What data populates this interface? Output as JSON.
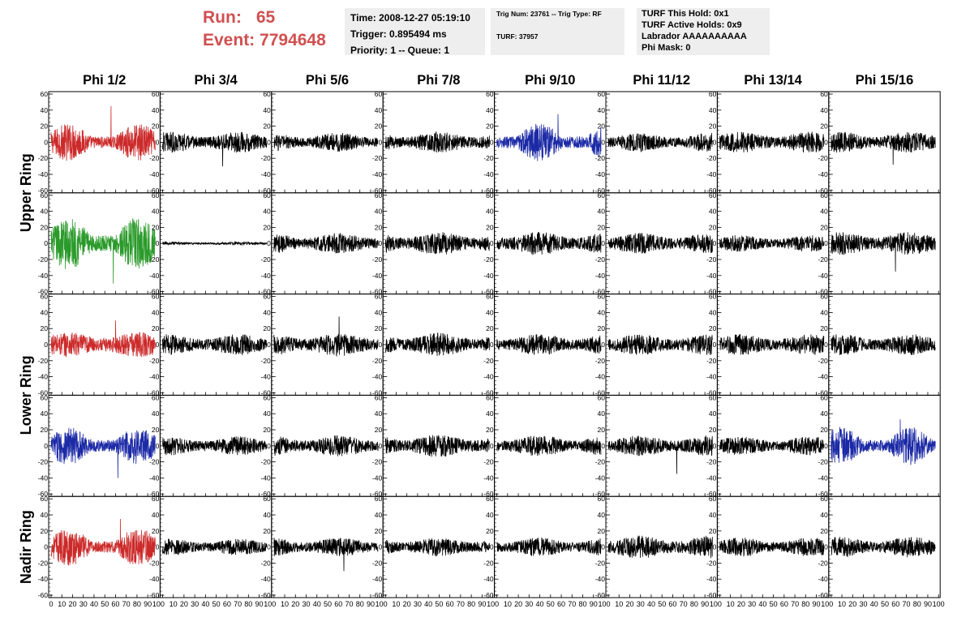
{
  "header": {
    "run_label": "Run:",
    "run_value": "65",
    "event_label": "Event:",
    "event_value": "7794648",
    "time": "Time: 2008-12-27 05:19:10",
    "trigger": "Trigger: 0.895494 ms",
    "priority": "Priority: 1 -- Queue: 1",
    "trig_num": "Trig Num: 23761 -- Trig Type: RF",
    "turf": "TURF: 37957",
    "turf_hold": "TURF This Hold: 0x1",
    "turf_active": "TURF Active Holds: 0x9",
    "labrador": "Labrador AAAAAAAAAA",
    "phi_mask": "Phi Mask: 0"
  },
  "colors": {
    "red": "#cc2a2a",
    "green": "#2a9a2a",
    "blue": "#1c2aa6",
    "black": "#000000",
    "header_text": "#d05050",
    "panel_bg": "#eeeeee"
  },
  "chart_data": {
    "type": "line",
    "columns": [
      "Phi 1/2",
      "Phi 3/4",
      "Phi 5/6",
      "Phi 7/8",
      "Phi 9/10",
      "Phi 11/12",
      "Phi 13/14",
      "Phi 15/16"
    ],
    "ring_labels": [
      {
        "label": "Upper Ring",
        "rows": [
          0,
          1
        ]
      },
      {
        "label": "Lower Ring",
        "rows": [
          2,
          3
        ]
      },
      {
        "label": "Nadir Ring",
        "rows": [
          4
        ]
      }
    ],
    "xlim": [
      0,
      100
    ],
    "ylim": [
      -60,
      60
    ],
    "xticks": [
      0,
      10,
      20,
      30,
      40,
      50,
      60,
      70,
      80,
      90,
      100
    ],
    "xtick_labels": [
      "0",
      "10",
      "20",
      "30",
      "40",
      "50",
      "60",
      "70",
      "80",
      "90",
      "100"
    ],
    "yticks": [
      -60,
      -40,
      -20,
      0,
      20,
      40,
      60
    ],
    "ytick_labels": [
      "-60",
      "-40",
      "-20",
      "0",
      "20",
      "40",
      "60"
    ],
    "x_extent": [
      0,
      97
    ],
    "waveforms": [
      [
        {
          "color": "red",
          "amp": 13,
          "spike": 45
        },
        {
          "color": "black",
          "amp": 10,
          "spike": -30
        },
        {
          "color": "black",
          "amp": 9
        },
        {
          "color": "black",
          "amp": 10
        },
        {
          "color": "blue",
          "amp": 13,
          "spike": 35
        },
        {
          "color": "black",
          "amp": 9
        },
        {
          "color": "black",
          "amp": 10
        },
        {
          "color": "black",
          "amp": 10,
          "spike": -28
        }
      ],
      [
        {
          "color": "green",
          "amp": 18,
          "spike": -50
        },
        {
          "color": "black",
          "amp": 1.5
        },
        {
          "color": "black",
          "amp": 10
        },
        {
          "color": "black",
          "amp": 11
        },
        {
          "color": "black",
          "amp": 11
        },
        {
          "color": "black",
          "amp": 10
        },
        {
          "color": "black",
          "amp": 8
        },
        {
          "color": "black",
          "amp": 11,
          "spike": -35
        }
      ],
      [
        {
          "color": "red",
          "amp": 12,
          "spike": 30
        },
        {
          "color": "black",
          "amp": 10
        },
        {
          "color": "black",
          "amp": 11,
          "spike": 35
        },
        {
          "color": "black",
          "amp": 11
        },
        {
          "color": "black",
          "amp": 10
        },
        {
          "color": "black",
          "amp": 10
        },
        {
          "color": "black",
          "amp": 10
        },
        {
          "color": "black",
          "amp": 10
        }
      ],
      [
        {
          "color": "blue",
          "amp": 13,
          "spike": -40
        },
        {
          "color": "black",
          "amp": 9
        },
        {
          "color": "black",
          "amp": 10
        },
        {
          "color": "black",
          "amp": 11
        },
        {
          "color": "black",
          "amp": 10
        },
        {
          "color": "black",
          "amp": 10,
          "spike": -35
        },
        {
          "color": "black",
          "amp": 9
        },
        {
          "color": "blue",
          "amp": 13,
          "spike": 33
        }
      ],
      [
        {
          "color": "red",
          "amp": 13,
          "spike": 35
        },
        {
          "color": "black",
          "amp": 8
        },
        {
          "color": "black",
          "amp": 9,
          "spike": -30
        },
        {
          "color": "black",
          "amp": 9
        },
        {
          "color": "black",
          "amp": 9
        },
        {
          "color": "black",
          "amp": 11
        },
        {
          "color": "black",
          "amp": 9
        },
        {
          "color": "black",
          "amp": 10
        }
      ]
    ]
  }
}
